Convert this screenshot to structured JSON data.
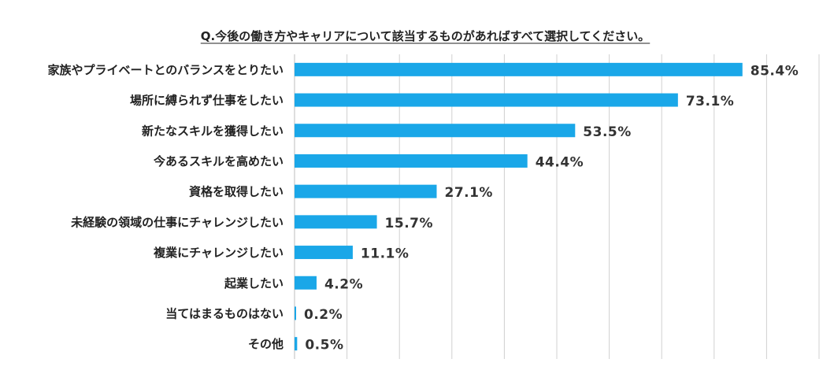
{
  "chart_data": {
    "type": "bar",
    "orientation": "horizontal",
    "title": "Q.今後の働き方やキャリアについて該当するものがあればすべて選択してください。",
    "categories": [
      "家族やプライベートとのバランスをとりたい",
      "場所に縛られず仕事をしたい",
      "新たなスキルを獲得したい",
      "今あるスキルを高めたい",
      "資格を取得したい",
      "未経験の領域の仕事にチャレンジしたい",
      "複業にチャレンジしたい",
      "起業したい",
      "当てはまるものはない",
      "その他"
    ],
    "values": [
      85.4,
      73.1,
      53.5,
      44.4,
      27.1,
      15.7,
      11.1,
      4.2,
      0.2,
      0.5
    ],
    "value_labels": [
      "85.4%",
      "73.1%",
      "53.5%",
      "44.4%",
      "27.1%",
      "15.7%",
      "11.1%",
      "4.2%",
      "0.2%",
      "0.5%"
    ],
    "xlim": [
      0,
      100
    ],
    "grid": true,
    "bar_color": "#1aa7e8",
    "grid_color": "#d0d0d0",
    "xlabel": "",
    "ylabel": ""
  }
}
